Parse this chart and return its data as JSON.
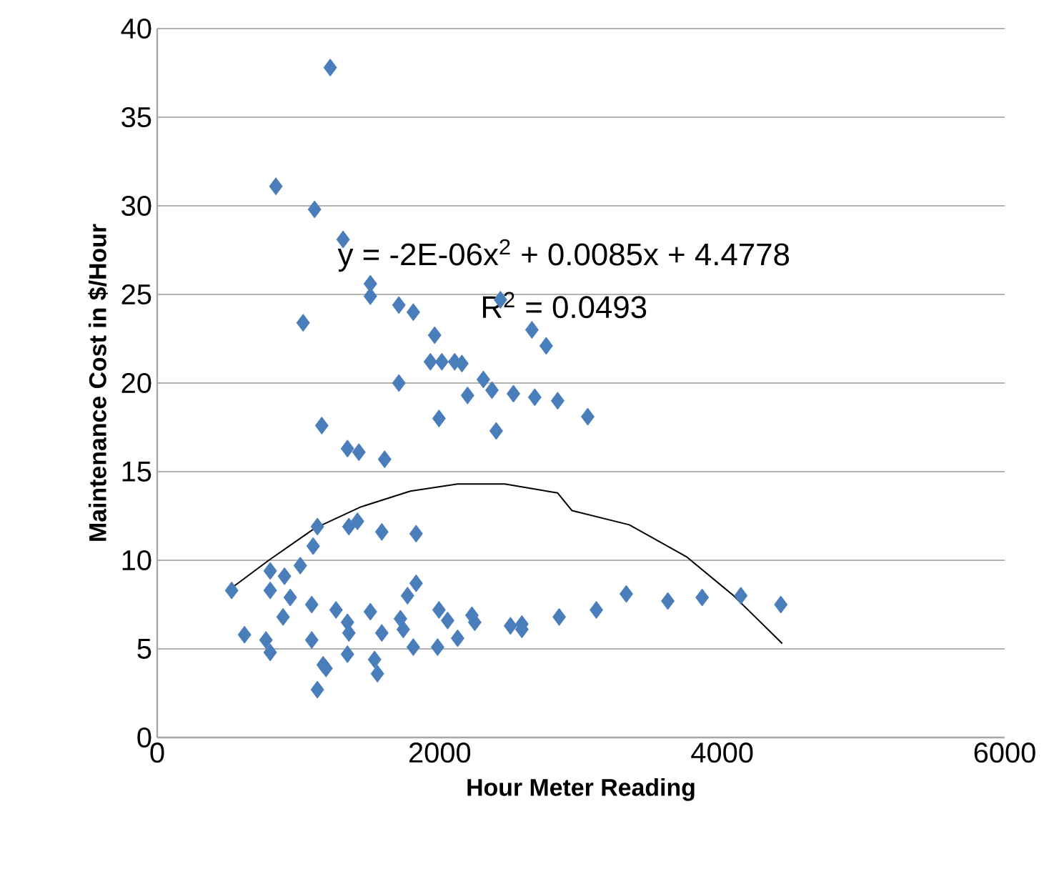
{
  "chart_data": {
    "type": "scatter",
    "xlabel": "Hour Meter Reading",
    "ylabel": "Maintenance Cost in $/Hour",
    "xlim": [
      0,
      6000
    ],
    "ylim": [
      0,
      40
    ],
    "xticks": [
      0,
      2000,
      4000,
      6000
    ],
    "yticks": [
      0,
      5,
      10,
      15,
      20,
      25,
      30,
      35,
      40
    ],
    "grid": "y",
    "marker": "diamond",
    "annotations": [
      "y = -2E-06x$^{2}$ + 0.0085x + 4.4778",
      "R$^{2}$ = 0.0493"
    ],
    "series": [
      {
        "color": "#4a7ebb",
        "x": [
          1225,
          840,
          1114,
          1316,
          1509,
          1509,
          1711,
          1813,
          1964,
          1033,
          1934,
          2015,
          2106,
          2157,
          2309,
          2370,
          2197,
          2522,
          2673,
          2835,
          3048,
          2400,
          1995,
          1711,
          2653,
          2754,
          2430,
          1165,
          1347,
          1428,
          1610,
          527,
          618,
          770,
          800,
          800,
          800,
          901,
          891,
          942,
          1013,
          1094,
          1094,
          1104,
          1134,
          1134,
          1175,
          1195,
          1266,
          1347,
          1357,
          1347,
          1357,
          1418,
          1509,
          1539,
          1559,
          1590,
          1590,
          1722,
          1742,
          1772,
          1833,
          1813,
          1833,
          1995,
          1985,
          2056,
          2127,
          2228,
          2248,
          2501,
          2582,
          2582,
          2846,
          3109,
          3321,
          3615,
          3858,
          4132,
          4415
        ],
        "values": [
          37.8,
          31.1,
          29.8,
          28.1,
          25.6,
          24.9,
          24.4,
          24.0,
          22.7,
          23.4,
          21.2,
          21.2,
          21.2,
          21.1,
          20.2,
          19.6,
          19.3,
          19.4,
          19.2,
          19.0,
          18.1,
          17.3,
          18.0,
          20.0,
          23.0,
          22.1,
          24.7,
          17.6,
          16.3,
          16.1,
          15.7,
          8.3,
          5.8,
          5.5,
          4.8,
          9.4,
          8.3,
          9.1,
          6.8,
          7.9,
          9.7,
          7.5,
          5.5,
          10.8,
          11.9,
          2.7,
          4.1,
          3.9,
          7.2,
          6.5,
          5.9,
          4.7,
          11.9,
          12.2,
          7.1,
          4.4,
          3.6,
          5.9,
          11.6,
          6.7,
          6.1,
          8.0,
          8.7,
          5.1,
          11.5,
          7.2,
          5.1,
          6.6,
          5.6,
          6.9,
          6.5,
          6.3,
          6.4,
          6.1,
          6.8,
          7.2,
          8.1,
          7.7,
          7.9,
          8.0,
          7.5
        ]
      },
      {
        "type": "line",
        "color": "#000000",
        "marker": "none",
        "x": [
          537,
          790,
          1114,
          1438,
          1792,
          2127,
          2461,
          2835,
          2937,
          3342,
          3747,
          4081,
          4425
        ],
        "values": [
          8.5,
          10.0,
          11.8,
          13.0,
          13.9,
          14.3,
          14.3,
          13.8,
          12.8,
          12.0,
          10.2,
          8.0,
          5.3
        ]
      }
    ]
  }
}
